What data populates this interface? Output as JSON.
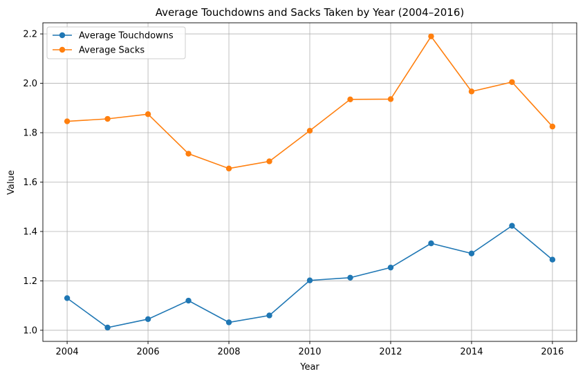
{
  "chart_data": {
    "type": "line",
    "title": "Average Touchdowns and Sacks Taken by Year (2004–2016)",
    "xlabel": "Year",
    "ylabel": "Value",
    "x": [
      2004,
      2005,
      2006,
      2007,
      2008,
      2009,
      2010,
      2011,
      2012,
      2013,
      2014,
      2015,
      2016
    ],
    "xlim": [
      2003.4,
      2016.6
    ],
    "ylim": [
      0.955,
      2.245
    ],
    "x_ticks": [
      2004,
      2006,
      2008,
      2010,
      2012,
      2014,
      2016
    ],
    "y_ticks": [
      1.0,
      1.2,
      1.4,
      1.6,
      1.8,
      2.0,
      2.2
    ],
    "grid": true,
    "legend_position": "top-left",
    "series": [
      {
        "name": "Average Touchdowns",
        "color": "#1f77b4",
        "marker": "circle",
        "values": [
          1.13,
          1.011,
          1.045,
          1.12,
          1.032,
          1.06,
          1.202,
          1.213,
          1.254,
          1.352,
          1.311,
          1.423,
          1.286
        ]
      },
      {
        "name": "Average Sacks",
        "color": "#ff7f0e",
        "marker": "circle",
        "values": [
          1.846,
          1.856,
          1.875,
          1.715,
          1.655,
          1.684,
          1.808,
          1.935,
          1.936,
          2.19,
          1.967,
          2.005,
          1.825
        ]
      }
    ]
  }
}
